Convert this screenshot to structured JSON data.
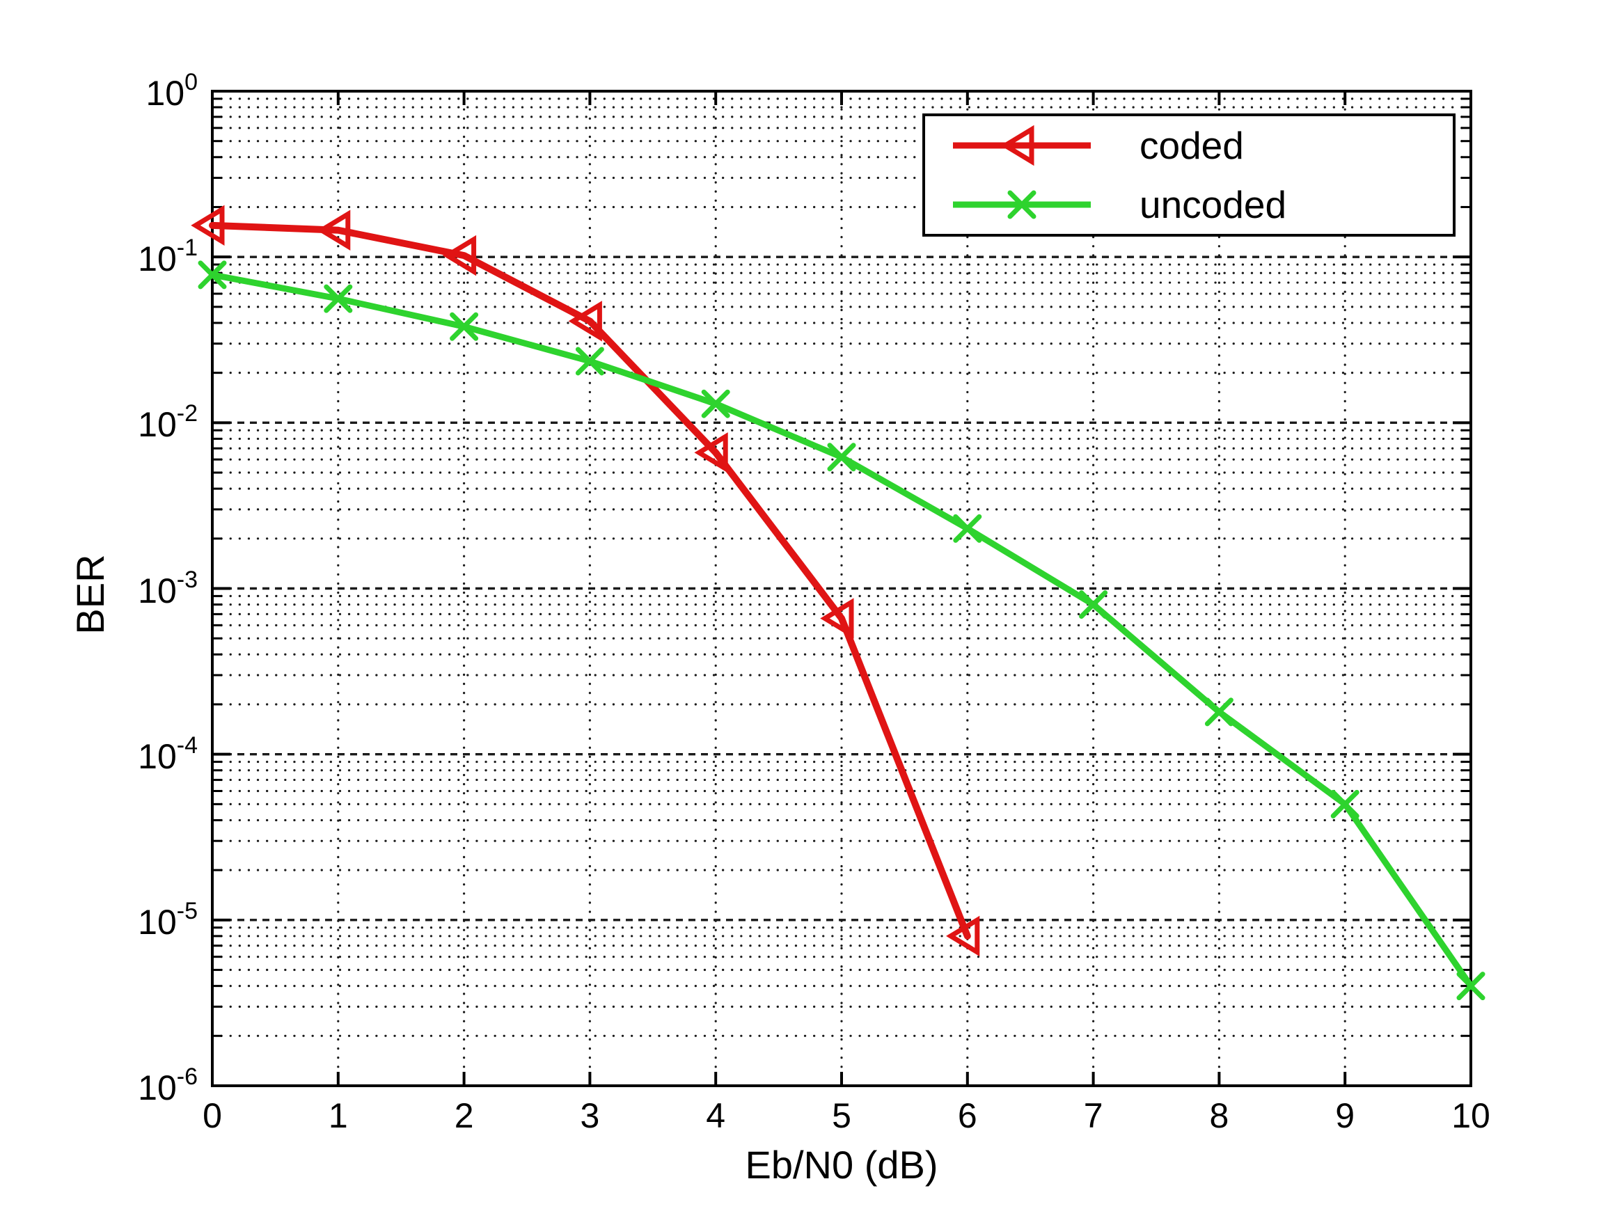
{
  "figure": {
    "background": "#ffffff",
    "axis_color": "#000000",
    "grid_color": "#1a1a1a",
    "text_color": "#000000"
  },
  "chart_data": {
    "type": "line",
    "title": "",
    "xlabel": "Eb/N0 (dB)",
    "ylabel": "BER",
    "x_scale": "linear",
    "y_scale": "log10",
    "xlim": [
      0,
      10
    ],
    "ylim": [
      1e-06,
      1
    ],
    "grid": true,
    "xticks": [
      0,
      1,
      2,
      3,
      4,
      5,
      6,
      7,
      8,
      9,
      10
    ],
    "ytick_labels": [
      {
        "base": "10",
        "exp": "0"
      },
      {
        "base": "10",
        "exp": "-1"
      },
      {
        "base": "10",
        "exp": "-2"
      },
      {
        "base": "10",
        "exp": "-3"
      },
      {
        "base": "10",
        "exp": "-4"
      },
      {
        "base": "10",
        "exp": "-5"
      },
      {
        "base": "10",
        "exp": "-6"
      }
    ],
    "legend": {
      "position": "upper-right",
      "border_color": "#000000",
      "background": "#ffffff"
    },
    "series": [
      {
        "name": "coded",
        "color": "#e01414",
        "marker": "left-triangle-open",
        "x": [
          0,
          1,
          2,
          3,
          4,
          5,
          6
        ],
        "y": [
          0.155,
          0.145,
          0.102,
          0.041,
          0.0066,
          0.00066,
          8e-06
        ]
      },
      {
        "name": "uncoded",
        "color": "#2ed32e",
        "marker": "x-cross",
        "x": [
          0,
          1,
          2,
          3,
          4,
          5,
          6,
          7,
          8,
          9,
          10
        ],
        "y": [
          0.078,
          0.056,
          0.038,
          0.0235,
          0.013,
          0.0062,
          0.0023,
          0.0008,
          0.00018,
          5e-05,
          4e-06
        ]
      }
    ]
  }
}
